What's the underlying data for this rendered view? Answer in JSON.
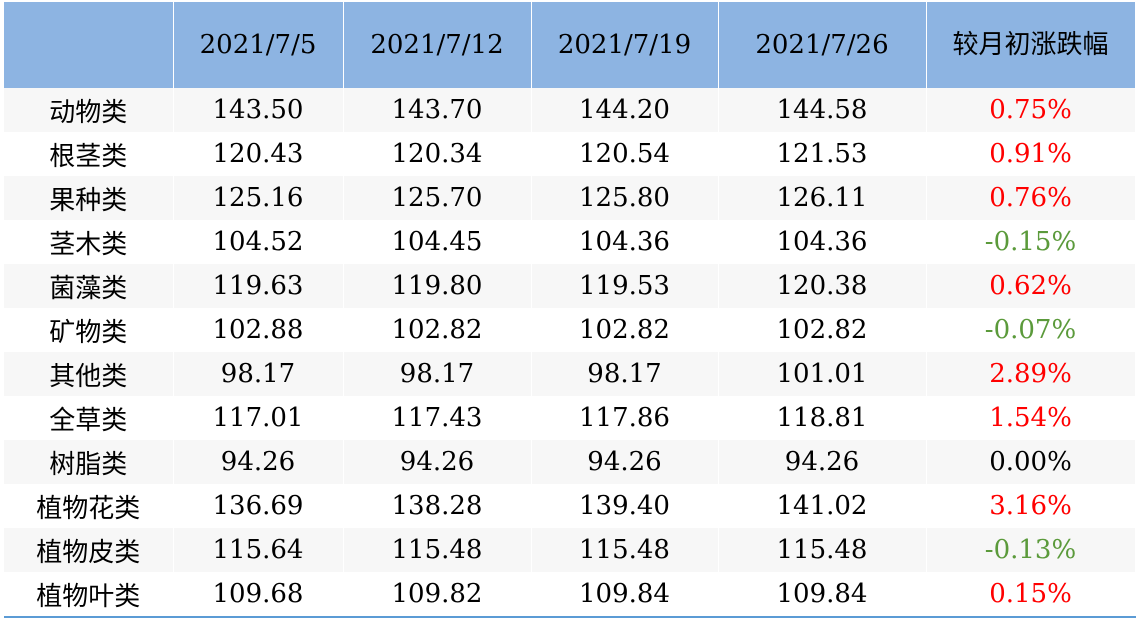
{
  "table": {
    "header": [
      "",
      "2021/7/5",
      "2021/7/12",
      "2021/7/19",
      "2021/7/26",
      "较月初涨跌幅"
    ],
    "rows": [
      [
        "动物类",
        "143.50",
        "143.70",
        "144.20",
        "144.58",
        "0.75%"
      ],
      [
        "根茎类",
        "120.43",
        "120.34",
        "120.54",
        "121.53",
        "0.91%"
      ],
      [
        "果种类",
        "125.16",
        "125.70",
        "125.80",
        "126.11",
        "0.76%"
      ],
      [
        "茎木类",
        "104.52",
        "104.45",
        "104.36",
        "104.36",
        "-0.15%"
      ],
      [
        "菌藻类",
        "119.63",
        "119.80",
        "119.53",
        "120.38",
        "0.62%"
      ],
      [
        "矿物类",
        "102.88",
        "102.82",
        "102.82",
        "102.82",
        "-0.07%"
      ],
      [
        "其他类",
        "98.17",
        "98.17",
        "98.17",
        "101.01",
        "2.89%"
      ],
      [
        "全草类",
        "117.01",
        "117.43",
        "117.86",
        "118.81",
        "1.54%"
      ],
      [
        "树脂类",
        "94.26",
        "94.26",
        "94.26",
        "94.26",
        "0.00%"
      ],
      [
        "植物花类",
        "136.69",
        "138.28",
        "139.40",
        "141.02",
        "3.16%"
      ],
      [
        "植物皮类",
        "115.64",
        "115.48",
        "115.48",
        "115.48",
        "-0.13%"
      ],
      [
        "植物叶类",
        "109.68",
        "109.82",
        "109.84",
        "109.84",
        "0.15%"
      ]
    ],
    "positive_color": "#ff0000",
    "negative_color": "#5b9a3b",
    "neutral_color": "#000000"
  }
}
